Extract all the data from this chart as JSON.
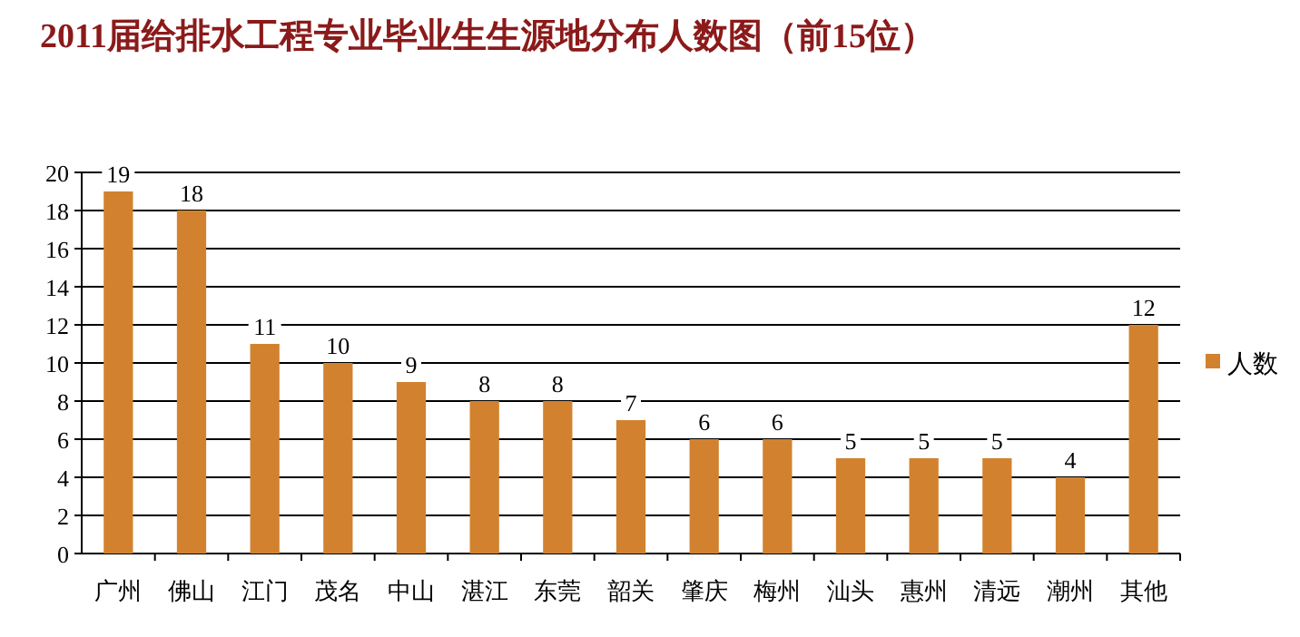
{
  "chart_data": {
    "type": "bar",
    "title": "2011届给排水工程专业毕业生生源地分布人数图（前15位）",
    "categories": [
      "广州",
      "佛山",
      "江门",
      "茂名",
      "中山",
      "湛江",
      "东莞",
      "韶关",
      "肇庆",
      "梅州",
      "汕头",
      "惠州",
      "清远",
      "潮州",
      "其他"
    ],
    "series": [
      {
        "name": "人数",
        "color": "#d2822f",
        "values": [
          19,
          18,
          11,
          10,
          9,
          8,
          8,
          7,
          6,
          6,
          5,
          5,
          5,
          4,
          12
        ]
      }
    ],
    "ylim": [
      0,
      20
    ],
    "yticks": [
      0,
      2,
      4,
      6,
      8,
      10,
      12,
      14,
      16,
      18,
      20
    ],
    "grid": "y",
    "legend": "right",
    "data_labels": true
  }
}
